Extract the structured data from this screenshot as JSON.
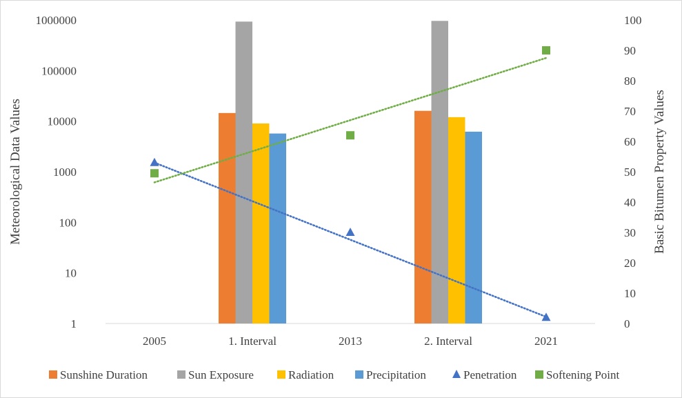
{
  "chart_data": {
    "type": "bar",
    "categories": [
      "2005",
      "1. Interval",
      "2013",
      "2. Interval",
      "2021"
    ],
    "y_left": {
      "label": "Meteorological Data Values",
      "scale": "log",
      "ticks": [
        "1",
        "10",
        "100",
        "1000",
        "10000",
        "100000",
        "1000000"
      ],
      "range": [
        1,
        1000000
      ]
    },
    "y_right": {
      "label": "Basic Bitumen Property Values",
      "scale": "linear",
      "ticks": [
        "0",
        "10",
        "20",
        "30",
        "40",
        "50",
        "60",
        "70",
        "80",
        "90",
        "100"
      ],
      "range": [
        0,
        100
      ]
    },
    "bar_series": [
      {
        "name": "Sunshine Duration",
        "color": "#ED7D31",
        "values": [
          null,
          14500,
          null,
          16000,
          null
        ]
      },
      {
        "name": "Sun Exposure",
        "color": "#A5A5A5",
        "values": [
          null,
          930000,
          null,
          960000,
          null
        ]
      },
      {
        "name": "Radiation",
        "color": "#FFC000",
        "values": [
          null,
          9000,
          null,
          12000,
          null
        ]
      },
      {
        "name": "Precipitation",
        "color": "#5B9BD5",
        "values": [
          null,
          5700,
          null,
          6200,
          null
        ]
      }
    ],
    "point_series": [
      {
        "name": "Penetration",
        "color": "#4472C4",
        "marker": "triangle",
        "axis": "right",
        "values": [
          53,
          null,
          30,
          null,
          2
        ]
      },
      {
        "name": "Softening Point",
        "color": "#70AD47",
        "marker": "square",
        "axis": "right",
        "values": [
          49.5,
          null,
          62,
          null,
          90
        ]
      }
    ],
    "trendlines": [
      {
        "series": "Penetration",
        "color": "#4472C4",
        "style": "dotted",
        "from": 53,
        "to": 2.2
      },
      {
        "series": "Softening Point",
        "color": "#70AD47",
        "style": "dotted",
        "from": 46.5,
        "to": 87.5
      }
    ],
    "grid": false,
    "legend_position": "bottom"
  }
}
